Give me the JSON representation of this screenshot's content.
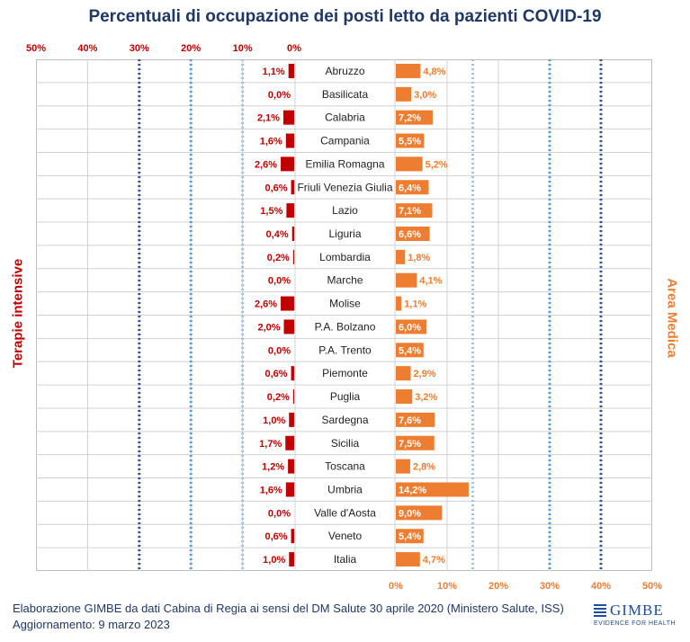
{
  "title": "Percentuali di occupazione dei posti letto da pazienti COVID-19",
  "left_label": "Terapie intensive",
  "right_label": "Area Medica",
  "footer": {
    "line1": "Elaborazione GIMBE da dati Cabina di Regia ai sensi del DM Salute 30 aprile 2020 (Ministero Salute, ISS)",
    "line2": "Aggiornamento: 9 marzo 2023"
  },
  "logo": {
    "name": "GIMBE",
    "tagline": "EVIDENCE FOR HEALTH"
  },
  "colors": {
    "left_bar": "#C00000",
    "right_bar": "#ED7D31",
    "title": "#1F3864",
    "threshold_light": "#9DC3E6",
    "threshold_mid": "#5B9BD5",
    "threshold_dark": "#2F5597"
  },
  "chart_data": {
    "type": "bar",
    "orientation": "horizontal-butterfly",
    "categories": [
      "Abruzzo",
      "Basilicata",
      "Calabria",
      "Campania",
      "Emilia Romagna",
      "Friuli Venezia Giulia",
      "Lazio",
      "Liguria",
      "Lombardia",
      "Marche",
      "Molise",
      "P.A. Bolzano",
      "P.A. Trento",
      "Piemonte",
      "Puglia",
      "Sardegna",
      "Sicilia",
      "Toscana",
      "Umbria",
      "Valle d'Aosta",
      "Veneto",
      "Italia"
    ],
    "series": [
      {
        "name": "Terapie intensive",
        "side": "left",
        "values": [
          1.1,
          0.0,
          2.1,
          1.6,
          2.6,
          0.6,
          1.5,
          0.4,
          0.2,
          0.0,
          2.6,
          2.0,
          0.0,
          0.6,
          0.2,
          1.0,
          1.7,
          1.2,
          1.6,
          0.0,
          0.6,
          1.0
        ],
        "labels": [
          "1,1%",
          "0,0%",
          "2,1%",
          "1,6%",
          "2,6%",
          "0,6%",
          "1,5%",
          "0,4%",
          "0,2%",
          "0,0%",
          "2,6%",
          "2,0%",
          "0,0%",
          "0,6%",
          "0,2%",
          "1,0%",
          "1,7%",
          "1,2%",
          "1,6%",
          "0,0%",
          "0,6%",
          "1,0%"
        ],
        "xlim": [
          0,
          50
        ],
        "ticks": [
          "50%",
          "40%",
          "30%",
          "20%",
          "10%",
          "0%"
        ],
        "thresholds": [
          10,
          20,
          30
        ]
      },
      {
        "name": "Area Medica",
        "side": "right",
        "values": [
          4.8,
          3.0,
          7.2,
          5.5,
          5.2,
          6.4,
          7.1,
          6.6,
          1.8,
          4.1,
          1.1,
          6.0,
          5.4,
          2.9,
          3.2,
          7.6,
          7.5,
          2.8,
          14.2,
          9.0,
          5.4,
          4.7
        ],
        "labels": [
          "4,8%",
          "3,0%",
          "7,2%",
          "5,5%",
          "5,2%",
          "6,4%",
          "7,1%",
          "6,6%",
          "1,8%",
          "4,1%",
          "1,1%",
          "6,0%",
          "5,4%",
          "2,9%",
          "3,2%",
          "7,6%",
          "7,5%",
          "2,8%",
          "14,2%",
          "9,0%",
          "5,4%",
          "4,7%"
        ],
        "xlim": [
          0,
          50
        ],
        "ticks": [
          "0%",
          "10%",
          "20%",
          "30%",
          "40%",
          "50%"
        ],
        "thresholds": [
          15,
          30,
          40
        ]
      }
    ],
    "grid": true
  }
}
